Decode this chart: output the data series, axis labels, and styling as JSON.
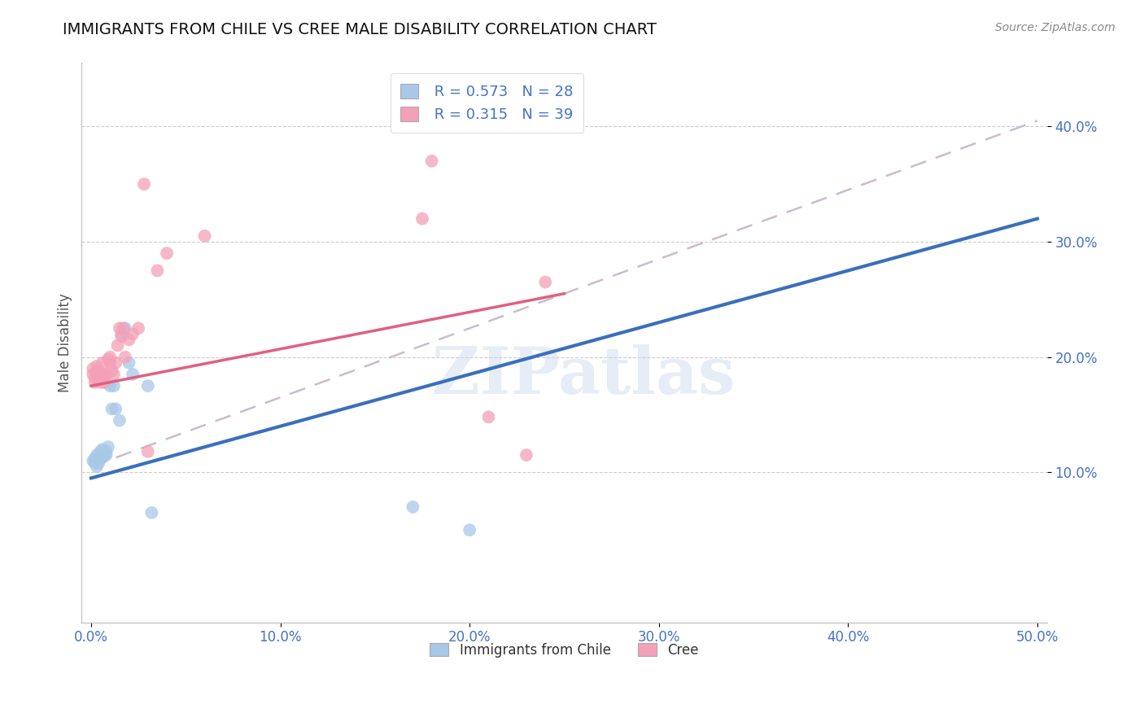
{
  "title": "IMMIGRANTS FROM CHILE VS CREE MALE DISABILITY CORRELATION CHART",
  "source": "Source: ZipAtlas.com",
  "ylabel_label": "Male Disability",
  "x_tick_labels": [
    "0.0%",
    "10.0%",
    "20.0%",
    "30.0%",
    "40.0%",
    "50.0%"
  ],
  "x_tick_values": [
    0.0,
    0.1,
    0.2,
    0.3,
    0.4,
    0.5
  ],
  "y_tick_labels": [
    "10.0%",
    "20.0%",
    "30.0%",
    "40.0%"
  ],
  "y_tick_values": [
    0.1,
    0.2,
    0.3,
    0.4
  ],
  "xlim": [
    -0.005,
    0.505
  ],
  "ylim": [
    -0.03,
    0.455
  ],
  "blue_R": 0.573,
  "blue_N": 28,
  "pink_R": 0.315,
  "pink_N": 39,
  "blue_color": "#a8c8e8",
  "pink_color": "#f4a0b8",
  "blue_line_color": "#3a6fbd",
  "pink_line_color": "#e06080",
  "gray_dash_color": "#ccbbcc",
  "watermark": "ZIPatlas",
  "legend_blue_label": "Immigrants from Chile",
  "legend_pink_label": "Cree",
  "blue_line_x0": 0.0,
  "blue_line_y0": 0.095,
  "blue_line_x1": 0.5,
  "blue_line_y1": 0.32,
  "pink_line_x0": 0.0,
  "pink_line_y0": 0.175,
  "pink_line_x1": 0.25,
  "pink_line_y1": 0.255,
  "gray_line_x0": 0.0,
  "gray_line_y0": 0.105,
  "gray_line_x1": 0.5,
  "gray_line_y1": 0.405,
  "blue_scatter_x": [
    0.001,
    0.002,
    0.002,
    0.003,
    0.003,
    0.004,
    0.004,
    0.005,
    0.005,
    0.006,
    0.006,
    0.007,
    0.008,
    0.008,
    0.009,
    0.01,
    0.011,
    0.012,
    0.013,
    0.015,
    0.016,
    0.018,
    0.02,
    0.022,
    0.03,
    0.032,
    0.17,
    0.2
  ],
  "blue_scatter_y": [
    0.11,
    0.108,
    0.112,
    0.105,
    0.115,
    0.11,
    0.108,
    0.112,
    0.118,
    0.113,
    0.12,
    0.115,
    0.115,
    0.118,
    0.122,
    0.175,
    0.155,
    0.175,
    0.155,
    0.145,
    0.22,
    0.225,
    0.195,
    0.185,
    0.175,
    0.065,
    0.07,
    0.05
  ],
  "pink_scatter_x": [
    0.001,
    0.001,
    0.002,
    0.002,
    0.003,
    0.003,
    0.004,
    0.004,
    0.005,
    0.005,
    0.006,
    0.006,
    0.007,
    0.007,
    0.008,
    0.009,
    0.01,
    0.01,
    0.011,
    0.012,
    0.013,
    0.014,
    0.015,
    0.016,
    0.017,
    0.018,
    0.02,
    0.022,
    0.025,
    0.028,
    0.03,
    0.035,
    0.04,
    0.06,
    0.175,
    0.18,
    0.21,
    0.23,
    0.24
  ],
  "pink_scatter_y": [
    0.185,
    0.19,
    0.178,
    0.182,
    0.192,
    0.185,
    0.185,
    0.188,
    0.178,
    0.185,
    0.195,
    0.182,
    0.185,
    0.178,
    0.185,
    0.198,
    0.2,
    0.195,
    0.188,
    0.185,
    0.195,
    0.21,
    0.225,
    0.218,
    0.225,
    0.2,
    0.215,
    0.22,
    0.225,
    0.35,
    0.118,
    0.275,
    0.29,
    0.305,
    0.32,
    0.37,
    0.148,
    0.115,
    0.265
  ]
}
